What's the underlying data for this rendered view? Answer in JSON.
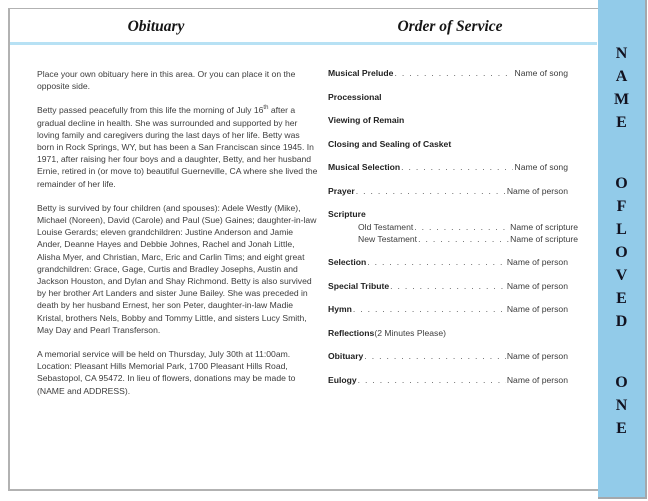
{
  "obituary": {
    "title": "Obituary",
    "paragraphs": {
      "p1": "Place your own obituary here in this area. Or you can place it on the opposite side.",
      "p2_pre": "Betty passed peacefully from this life the morning of July 16",
      "p2_sup": "th",
      "p2_post": " after a gradual decline in health.  She was surrounded and supported by her loving family and caregivers during the last days of her life.  Betty was born in Rock Springs, WY, but has been a San Franciscan since 1945.  In 1971, after raising her four boys and a daughter, Betty, and her husband Ernie, retired in (or move to) beautiful Guerneville, CA where she lived the remainder of her life.",
      "p3": "Betty is survived by four children (and spouses): Adele Westly (Mike), Michael (Noreen), David (Carole) and Paul (Sue) Gaines;  daughter-in-law Louise Gerards;  eleven grandchildren: Justine Anderson and Jamie Ander, Deanne Hayes and Debbie Johnes, Rachel and Jonah Little, Alisha Myer, and Christian, Marc, Eric and Carlin Tims;  and eight great grandchildren: Grace, Gage, Curtis and Bradley Josephs, Austin and Jackson Houston, and Dylan and Shay Richmond.  Betty is also survived by her brother Art Landers and sister June Bailey.  She was preceded in death by her husband Ernest, her son Peter, daughter-in-law Madie Kristal, brothers Nels, Bobby and Tommy Little, and sisters Lucy Smith, May Day and Pearl Transferson.",
      "p4": "A memorial service will be held on Thursday, July 30th at 11:00am.  Location:  Pleasant Hills Memorial Park, 1700 Pleasant Hills Road, Sebastopol, CA 95472.  In lieu of flowers, donations may be made to (NAME and ADDRESS)."
    }
  },
  "order_of_service": {
    "title": "Order of Service",
    "rows": [
      {
        "label": "Musical Prelude",
        "value": "Name of song",
        "leader": true,
        "bold": true
      },
      {
        "label": "Processional",
        "bold": true
      },
      {
        "label": "Viewing of Remain",
        "bold": true
      },
      {
        "label": "Closing and Sealing of Casket",
        "bold": true
      },
      {
        "label": "Musical Selection",
        "value": "Name of song",
        "leader": true,
        "bold": true
      },
      {
        "label": "Prayer",
        "value": "Name of person",
        "leader": true,
        "bold": true
      },
      {
        "label": "Scripture",
        "bold": true,
        "group_head": true
      },
      {
        "label": "Old Testament",
        "value": "Name of scripture",
        "leader": true,
        "bold": false,
        "indent": true
      },
      {
        "label": "New Testament",
        "value": "Name of scripture",
        "leader": true,
        "bold": false,
        "indent": true
      },
      {
        "label": "Selection",
        "value": "Name of person",
        "leader": true,
        "bold": true
      },
      {
        "label": "Special Tribute",
        "value": "Name of person",
        "leader": true,
        "bold": true
      },
      {
        "label": "Hymn",
        "value": "Name of person",
        "leader": true,
        "bold": true
      },
      {
        "label": "Reflections",
        "suffix": "(2 Minutes Please)",
        "bold": true
      },
      {
        "label": "Obituary",
        "value": "Name of person",
        "leader": true,
        "bold": true
      },
      {
        "label": "Eulogy",
        "value": "Name of person",
        "leader": true,
        "bold": true
      }
    ]
  },
  "side_banner": {
    "text": "NAME OF LOVED ONE",
    "letters": [
      "N",
      "A",
      "M",
      "E",
      "",
      "O",
      "F",
      "L",
      "O",
      "V",
      "E",
      "D",
      "",
      "O",
      "N",
      "E"
    ],
    "bg_color": "#92cbe9"
  },
  "colors": {
    "banner_blue": "#92cbe9",
    "divider_blue": "#b7e1f4",
    "border_gray": "#b2b2b2",
    "body_text": "#3d3d3d"
  }
}
